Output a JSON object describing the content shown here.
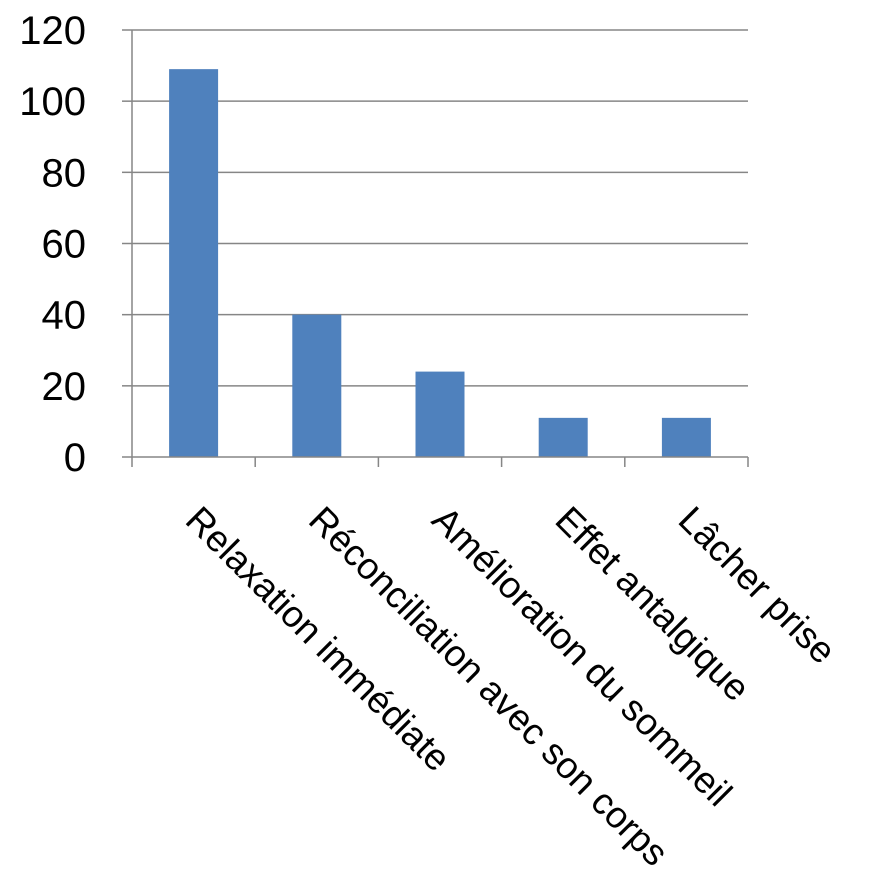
{
  "chart_data": {
    "type": "bar",
    "categories": [
      "Relaxation immédiate",
      "Réconciliation avec son corps",
      "Amélioration du sommeil",
      "Effet antalgique",
      "Lâcher prise"
    ],
    "values": [
      109,
      40,
      24,
      11,
      11
    ],
    "ylim": [
      0,
      120
    ],
    "yticks": [
      "0",
      "20",
      "40",
      "60",
      "80",
      "100",
      "120"
    ],
    "grid": true,
    "legend": "none",
    "title": "",
    "xlabel": "",
    "ylabel": "",
    "colors": {
      "bar": "#4F81BD",
      "grid": "#868686",
      "axis": "#868686"
    }
  }
}
